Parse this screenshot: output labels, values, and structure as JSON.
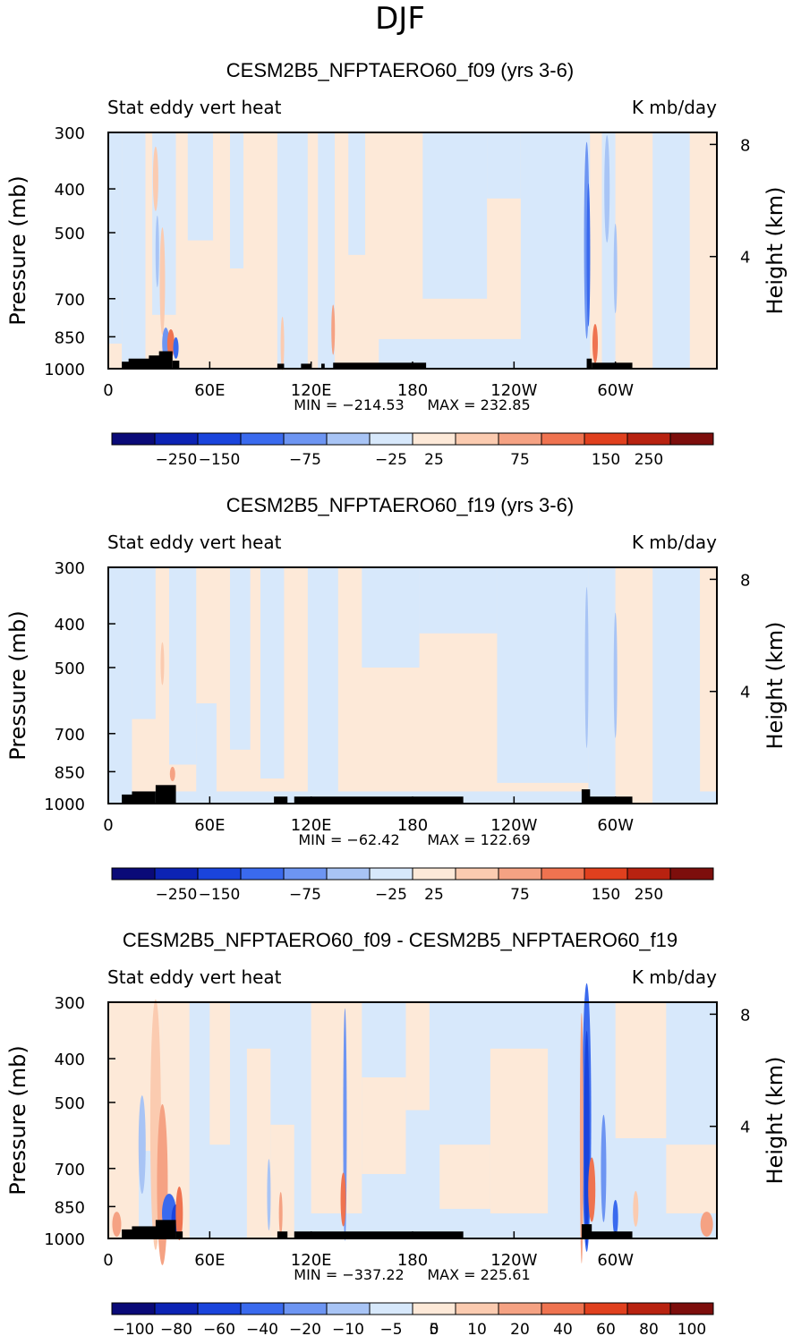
{
  "season": "DJF",
  "chart_data": [
    {
      "type": "heatmap",
      "title": "CESM2B5_NFPTAERO60_f09 (yrs 3-6)",
      "left_label": "Stat eddy vert heat",
      "right_label": "K mb/day",
      "ylabel": "Pressure (mb)",
      "ylabel_right": "Height (km)",
      "x_ticks": [
        "0",
        "60E",
        "120E",
        "180",
        "120W",
        "60W"
      ],
      "x_tick_lon": [
        0,
        60,
        120,
        180,
        240,
        300
      ],
      "xlim": [
        0,
        360
      ],
      "y_ticks": [
        "300",
        "400",
        "500",
        "700",
        "850",
        "1000"
      ],
      "y_tick_p": [
        300,
        400,
        500,
        700,
        850,
        1000
      ],
      "ylim": [
        1000,
        300
      ],
      "height_ticks": [
        "8",
        "4"
      ],
      "height_tick_km": [
        8,
        4
      ],
      "min_text": "MIN = −214.53",
      "max_text": "MAX = 232.85",
      "colorbar_labels": [
        "−250",
        "−150",
        "−75",
        "−25",
        "25",
        "75",
        "150",
        "250"
      ]
    },
    {
      "type": "heatmap",
      "title": "CESM2B5_NFPTAERO60_f19 (yrs 3-6)",
      "left_label": "Stat eddy vert heat",
      "right_label": "K mb/day",
      "ylabel": "Pressure (mb)",
      "ylabel_right": "Height (km)",
      "x_ticks": [
        "0",
        "60E",
        "120E",
        "180",
        "120W",
        "60W"
      ],
      "x_tick_lon": [
        0,
        60,
        120,
        180,
        240,
        300
      ],
      "xlim": [
        0,
        360
      ],
      "y_ticks": [
        "300",
        "400",
        "500",
        "700",
        "850",
        "1000"
      ],
      "y_tick_p": [
        300,
        400,
        500,
        700,
        850,
        1000
      ],
      "ylim": [
        1000,
        300
      ],
      "height_ticks": [
        "8",
        "4"
      ],
      "height_tick_km": [
        8,
        4
      ],
      "min_text": "MIN = −62.42",
      "max_text": "MAX = 122.69",
      "colorbar_labels": [
        "−250",
        "−150",
        "−75",
        "−25",
        "25",
        "75",
        "150",
        "250"
      ]
    },
    {
      "type": "heatmap",
      "title": "CESM2B5_NFPTAERO60_f09 - CESM2B5_NFPTAERO60_f19",
      "left_label": "Stat eddy vert heat",
      "right_label": "K mb/day",
      "ylabel": "Pressure (mb)",
      "ylabel_right": "Height (km)",
      "x_ticks": [
        "0",
        "60E",
        "120E",
        "180",
        "120W",
        "60W"
      ],
      "x_tick_lon": [
        0,
        60,
        120,
        180,
        240,
        300
      ],
      "xlim": [
        0,
        360
      ],
      "y_ticks": [
        "300",
        "400",
        "500",
        "700",
        "850",
        "1000"
      ],
      "y_tick_p": [
        300,
        400,
        500,
        700,
        850,
        1000
      ],
      "ylim": [
        1000,
        300
      ],
      "height_ticks": [
        "8",
        "4"
      ],
      "height_tick_km": [
        8,
        4
      ],
      "min_text": "MIN = −337.22",
      "max_text": "MAX = 225.61",
      "colorbar_labels": [
        "−100",
        "−80",
        "−60",
        "−40",
        "−20",
        "−10",
        "−5",
        "0",
        "5",
        "10",
        "20",
        "40",
        "60",
        "80",
        "100"
      ]
    }
  ],
  "colormap": [
    "#0a0a78",
    "#0c23b4",
    "#1a44dc",
    "#3a6aee",
    "#6d95f2",
    "#a8c4f5",
    "#d7e8fb",
    "#fde9d8",
    "#fbcbb0",
    "#f5a283",
    "#ef7350",
    "#e0401e",
    "#b82210",
    "#7d0e0c"
  ],
  "field_colors": {
    "neutral_blue": "#d7e8fb",
    "neutral_orange": "#fde9d8",
    "blue2": "#a8c4f5",
    "blue3": "#6d95f2",
    "blue4": "#3a6aee",
    "blue5": "#1a44dc",
    "blue6": "#0a0a78",
    "red2": "#fbcbb0",
    "red3": "#f5a283",
    "red4": "#ef7350",
    "red5": "#e0401e",
    "terrain": "#000000"
  }
}
